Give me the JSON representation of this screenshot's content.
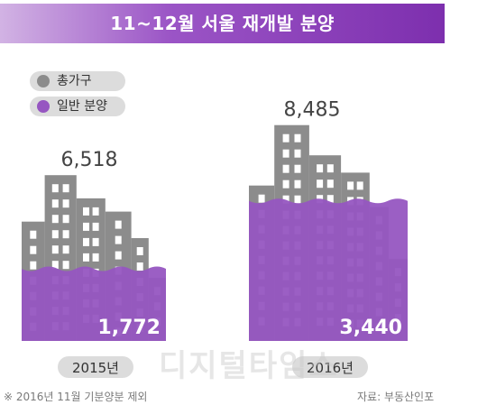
{
  "colors": {
    "total": "#8c8c8c",
    "general": "#9656c1",
    "window": "#ffffff",
    "year_pill": "#dcdcdc"
  },
  "chart_data": {
    "type": "bar",
    "title": "11~12월 서울 재개발 분양",
    "categories": [
      "2015년",
      "2016년"
    ],
    "series": [
      {
        "name": "총가구",
        "values": [
          6518,
          8485
        ],
        "labels": [
          "6,518",
          "8,485"
        ],
        "color": "#8c8c8c",
        "icon": "building-icon"
      },
      {
        "name": "일반 분양",
        "values": [
          1772,
          3440
        ],
        "labels": [
          "1,772",
          "3,440"
        ],
        "color": "#9656c1",
        "icon": "water-fill"
      }
    ],
    "legend": "top-left",
    "grid": false
  },
  "footnote": "※ 2016년 11월 기분양분 제외",
  "source": "자료: 부동산인포",
  "watermark": "디지털타임스"
}
